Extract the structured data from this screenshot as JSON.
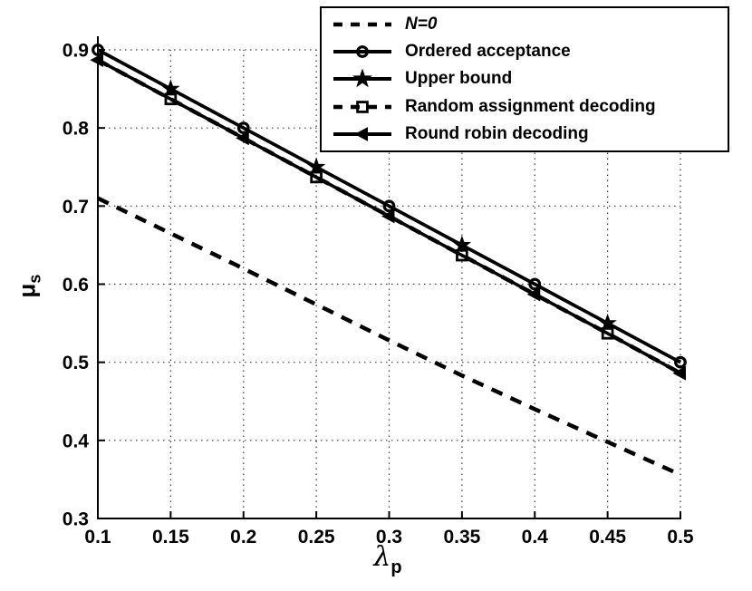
{
  "figure": {
    "background": "#ffffff",
    "line_color": "#000000",
    "grid_style": "dotted"
  },
  "axes": {
    "xlabel_symbol": "λ",
    "xlabel_subscript": "p",
    "ylabel_symbol": "μ",
    "ylabel_subscript": "s",
    "x_tick_labels": [
      "0.1",
      "0.15",
      "0.2",
      "0.25",
      "0.3",
      "0.35",
      "0.4",
      "0.45",
      "0.5"
    ],
    "y_tick_labels": [
      "0.3",
      "0.4",
      "0.5",
      "0.6",
      "0.7",
      "0.8",
      "0.9"
    ],
    "xlim": [
      0.1,
      0.5
    ],
    "ylim": [
      0.3,
      0.92
    ]
  },
  "legend": {
    "position": "top-right",
    "items": [
      {
        "id": "n0",
        "label": "N=0",
        "italic": true,
        "line": "dashed",
        "marker": "none"
      },
      {
        "id": "ordered-acceptance",
        "label": "Ordered acceptance",
        "italic": false,
        "line": "solid",
        "marker": "circle"
      },
      {
        "id": "upper-bound",
        "label": "Upper bound",
        "italic": false,
        "line": "solid",
        "marker": "star"
      },
      {
        "id": "random-assignment-decoding",
        "label": "Random assignment decoding",
        "italic": false,
        "line": "dashed",
        "marker": "square"
      },
      {
        "id": "round-robin-decoding",
        "label": "Round robin decoding",
        "italic": false,
        "line": "solid",
        "marker": "triangle-left"
      }
    ]
  },
  "chart_data": {
    "type": "line",
    "title": "",
    "xlabel": "lambda_p",
    "ylabel": "mu_s",
    "xlim": [
      0.1,
      0.5
    ],
    "ylim": [
      0.3,
      0.92
    ],
    "grid": true,
    "legend_position": "top-right",
    "x": [
      0.1,
      0.15,
      0.2,
      0.25,
      0.3,
      0.35,
      0.4,
      0.45,
      0.5
    ],
    "series": [
      {
        "id": "n0",
        "name": "N=0",
        "line": "dashed",
        "marker": "none",
        "marker_indices": [],
        "values": [
          0.71,
          0.665,
          0.62,
          0.574,
          0.528,
          0.483,
          0.44,
          0.398,
          0.356
        ]
      },
      {
        "id": "random-assignment-decoding",
        "name": "Random assignment decoding",
        "line": "dashed",
        "marker": "square",
        "marker_indices": [
          1,
          3,
          5,
          7
        ],
        "values": [
          0.887,
          0.837,
          0.787,
          0.737,
          0.687,
          0.637,
          0.587,
          0.537,
          0.486
        ]
      },
      {
        "id": "round-robin-decoding",
        "name": "Round robin decoding",
        "line": "solid",
        "marker": "triangle-left",
        "marker_indices": [
          0,
          2,
          4,
          6,
          8
        ],
        "values": [
          0.887,
          0.837,
          0.787,
          0.737,
          0.687,
          0.637,
          0.587,
          0.537,
          0.486
        ]
      },
      {
        "id": "ordered-acceptance",
        "name": "Ordered acceptance",
        "line": "solid",
        "marker": "circle",
        "marker_indices": [
          0,
          2,
          4,
          6,
          8
        ],
        "values": [
          0.9,
          0.85,
          0.8,
          0.75,
          0.7,
          0.65,
          0.6,
          0.55,
          0.5
        ]
      },
      {
        "id": "upper-bound",
        "name": "Upper bound",
        "line": "solid",
        "marker": "star",
        "marker_indices": [
          1,
          3,
          5,
          7
        ],
        "values": [
          0.9,
          0.85,
          0.8,
          0.75,
          0.7,
          0.65,
          0.6,
          0.55,
          0.5
        ]
      }
    ]
  }
}
